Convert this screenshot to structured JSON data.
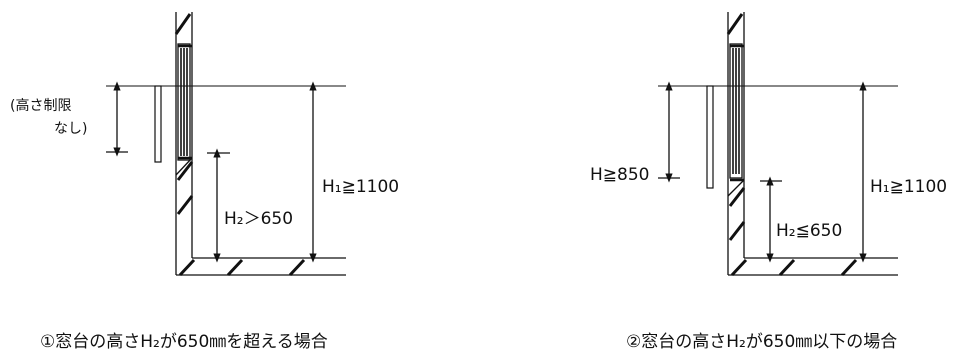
{
  "left": {
    "note_line1": "(高さ制限",
    "note_line2": "なし)",
    "h1": "H₁≧1100",
    "h2": "H₂＞650",
    "caption": "①窓台の高さH₂が650㎜を超える場合"
  },
  "right": {
    "h": "H≧850",
    "h1": "H₁≧1100",
    "h2": "H₂≦650",
    "caption": "②窓台の高さH₂が650㎜以下の場合"
  }
}
